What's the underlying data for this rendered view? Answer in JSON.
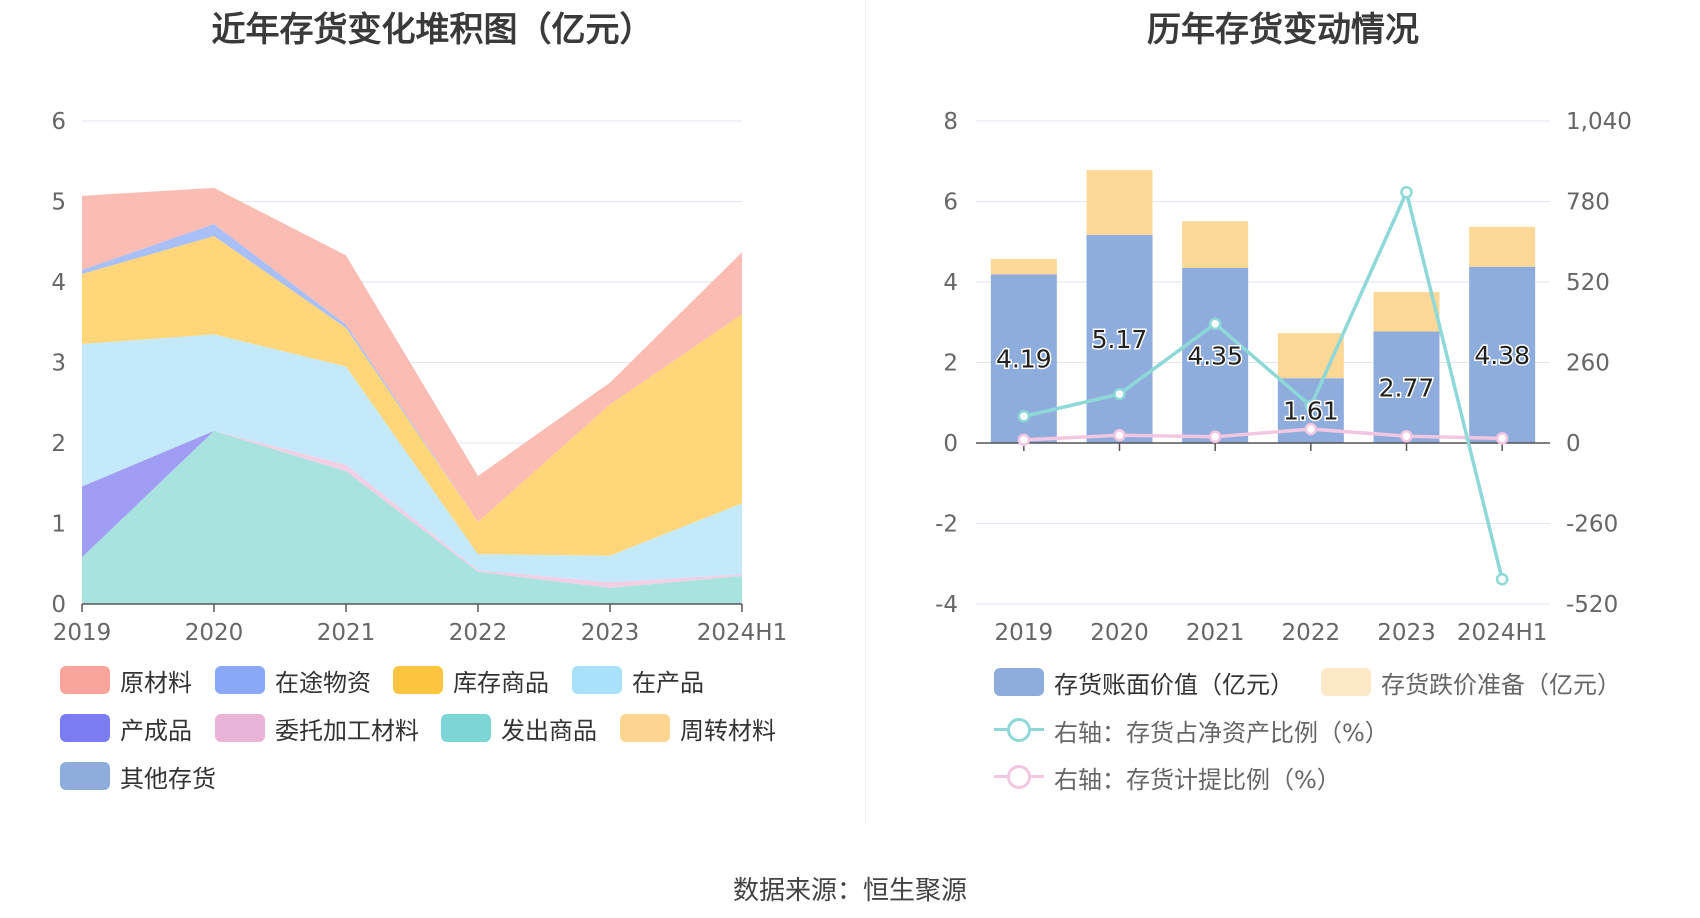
{
  "source_label": "数据来源：恒生聚源",
  "left": {
    "title": "近年存货变化堆积图（亿元）",
    "legend": [
      {
        "name": "原材料",
        "color": "#f9a49a"
      },
      {
        "name": "在途物资",
        "color": "#8aa8f8"
      },
      {
        "name": "库存商品",
        "color": "#fdc53f"
      },
      {
        "name": "在产品",
        "color": "#a7e0f8"
      },
      {
        "name": "产成品",
        "color": "#7b7bf2"
      },
      {
        "name": "委托加工材料",
        "color": "#eab4d8"
      },
      {
        "name": "发出商品",
        "color": "#7ed5d5"
      },
      {
        "name": "周转材料",
        "color": "#fdd590"
      },
      {
        "name": "其他存货",
        "color": "#8eaddc"
      }
    ]
  },
  "right": {
    "title": "历年存货变动情况",
    "legend": [
      {
        "name": "存货账面价值（亿元）",
        "color": "#8eaddc",
        "kind": "bar"
      },
      {
        "name": "存货跌价准备（亿元）",
        "color": "#fde9c8",
        "kind": "bar"
      },
      {
        "name": "右轴：存货占净资产比例（%）",
        "color": "#8ed8d8",
        "kind": "line"
      },
      {
        "name": "右轴：存货计提比例（%）",
        "color": "#f3c6e2",
        "kind": "line"
      }
    ]
  },
  "chart_data": [
    {
      "type": "area",
      "title": "近年存货变化堆积图（亿元）",
      "stacked": true,
      "categories": [
        "2019",
        "2020",
        "2021",
        "2022",
        "2023",
        "2024H1"
      ],
      "ylim": [
        0,
        6
      ],
      "yticks": [
        0,
        1,
        2,
        3,
        4,
        5,
        6
      ],
      "grid": true,
      "legend_position": "bottom",
      "series": [
        {
          "name": "发出商品",
          "color": "#a8e3e0",
          "values": [
            0.58,
            2.15,
            1.65,
            0.4,
            0.2,
            0.35
          ]
        },
        {
          "name": "产成品",
          "color": "#a09df4",
          "values": [
            0.88,
            0,
            0,
            0,
            0,
            0
          ]
        },
        {
          "name": "委托加工材料",
          "color": "#f3cfe6",
          "values": [
            0,
            0,
            0.08,
            0.02,
            0.07,
            0.02
          ]
        },
        {
          "name": "在产品",
          "color": "#c3e9fa",
          "values": [
            1.77,
            1.2,
            1.22,
            0.2,
            0.33,
            0.88
          ]
        },
        {
          "name": "库存商品",
          "color": "#ffd77a",
          "values": [
            0.87,
            1.22,
            0.48,
            0.4,
            1.88,
            2.35
          ]
        },
        {
          "name": "在途物资",
          "color": "#a8bff8",
          "values": [
            0.05,
            0.15,
            0.04,
            0,
            0,
            0
          ]
        },
        {
          "name": "原材料",
          "color": "#fbbcb4",
          "values": [
            0.92,
            0.45,
            0.86,
            0.57,
            0.27,
            0.77
          ]
        }
      ]
    },
    {
      "type": "bar",
      "title": "历年存货变动情况",
      "stacked": true,
      "categories": [
        "2019",
        "2020",
        "2021",
        "2022",
        "2023",
        "2024H1"
      ],
      "ylim": [
        -4,
        8
      ],
      "yticks": [
        -4,
        -2,
        0,
        2,
        4,
        6,
        8
      ],
      "y2lim": [
        -520,
        1040
      ],
      "y2ticks": [
        "-520",
        "-260",
        "0",
        "260",
        "520",
        "780",
        "1,040"
      ],
      "grid": true,
      "legend_position": "bottom",
      "series": [
        {
          "name": "存货账面价值（亿元）",
          "color": "#8eaddc",
          "values": [
            4.19,
            5.17,
            4.35,
            1.61,
            2.77,
            4.38
          ],
          "labels": [
            "4.19",
            "5.17",
            "4.35",
            "1.61",
            "2.77",
            "4.38"
          ]
        },
        {
          "name": "存货跌价准备（亿元）",
          "color": "#fed896",
          "values": [
            0.38,
            1.61,
            1.16,
            1.12,
            0.98,
            0.99
          ]
        }
      ],
      "lines": [
        {
          "name": "右轴：存货占净资产比例（%）",
          "color": "#8ed8d8",
          "axis": "right",
          "values": [
            86,
            158,
            385,
            120,
            810,
            -440
          ]
        },
        {
          "name": "右轴：存货计提比例（%）",
          "color": "#f3c6e2",
          "axis": "right",
          "values": [
            10,
            25,
            20,
            45,
            22,
            15
          ]
        }
      ]
    }
  ]
}
